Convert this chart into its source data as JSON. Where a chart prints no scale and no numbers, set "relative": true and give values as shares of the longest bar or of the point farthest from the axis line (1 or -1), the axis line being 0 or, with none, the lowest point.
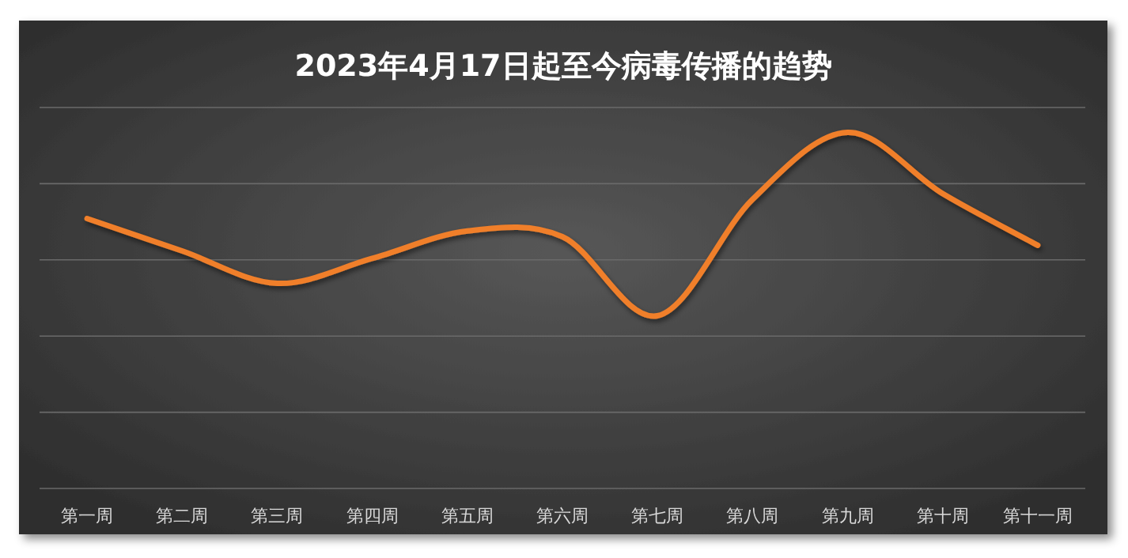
{
  "chart_data": {
    "type": "line",
    "title": "2023年4月17日起至今病毒传播的趋势",
    "relative": true,
    "grid": "y",
    "marker": "none",
    "line_style": "solid",
    "categories": [
      "第一周",
      "第二周",
      "第三周",
      "第四周",
      "第五周",
      "第六周",
      "第七周",
      "第八周",
      "第九周",
      "第十周",
      "第十一周"
    ],
    "series": [
      {
        "color": "#f07f2a",
        "values": [
          0.758,
          0.667,
          0.576,
          0.646,
          0.723,
          0.707,
          0.485,
          0.812,
          1,
          0.828,
          0.683
        ]
      }
    ]
  }
}
